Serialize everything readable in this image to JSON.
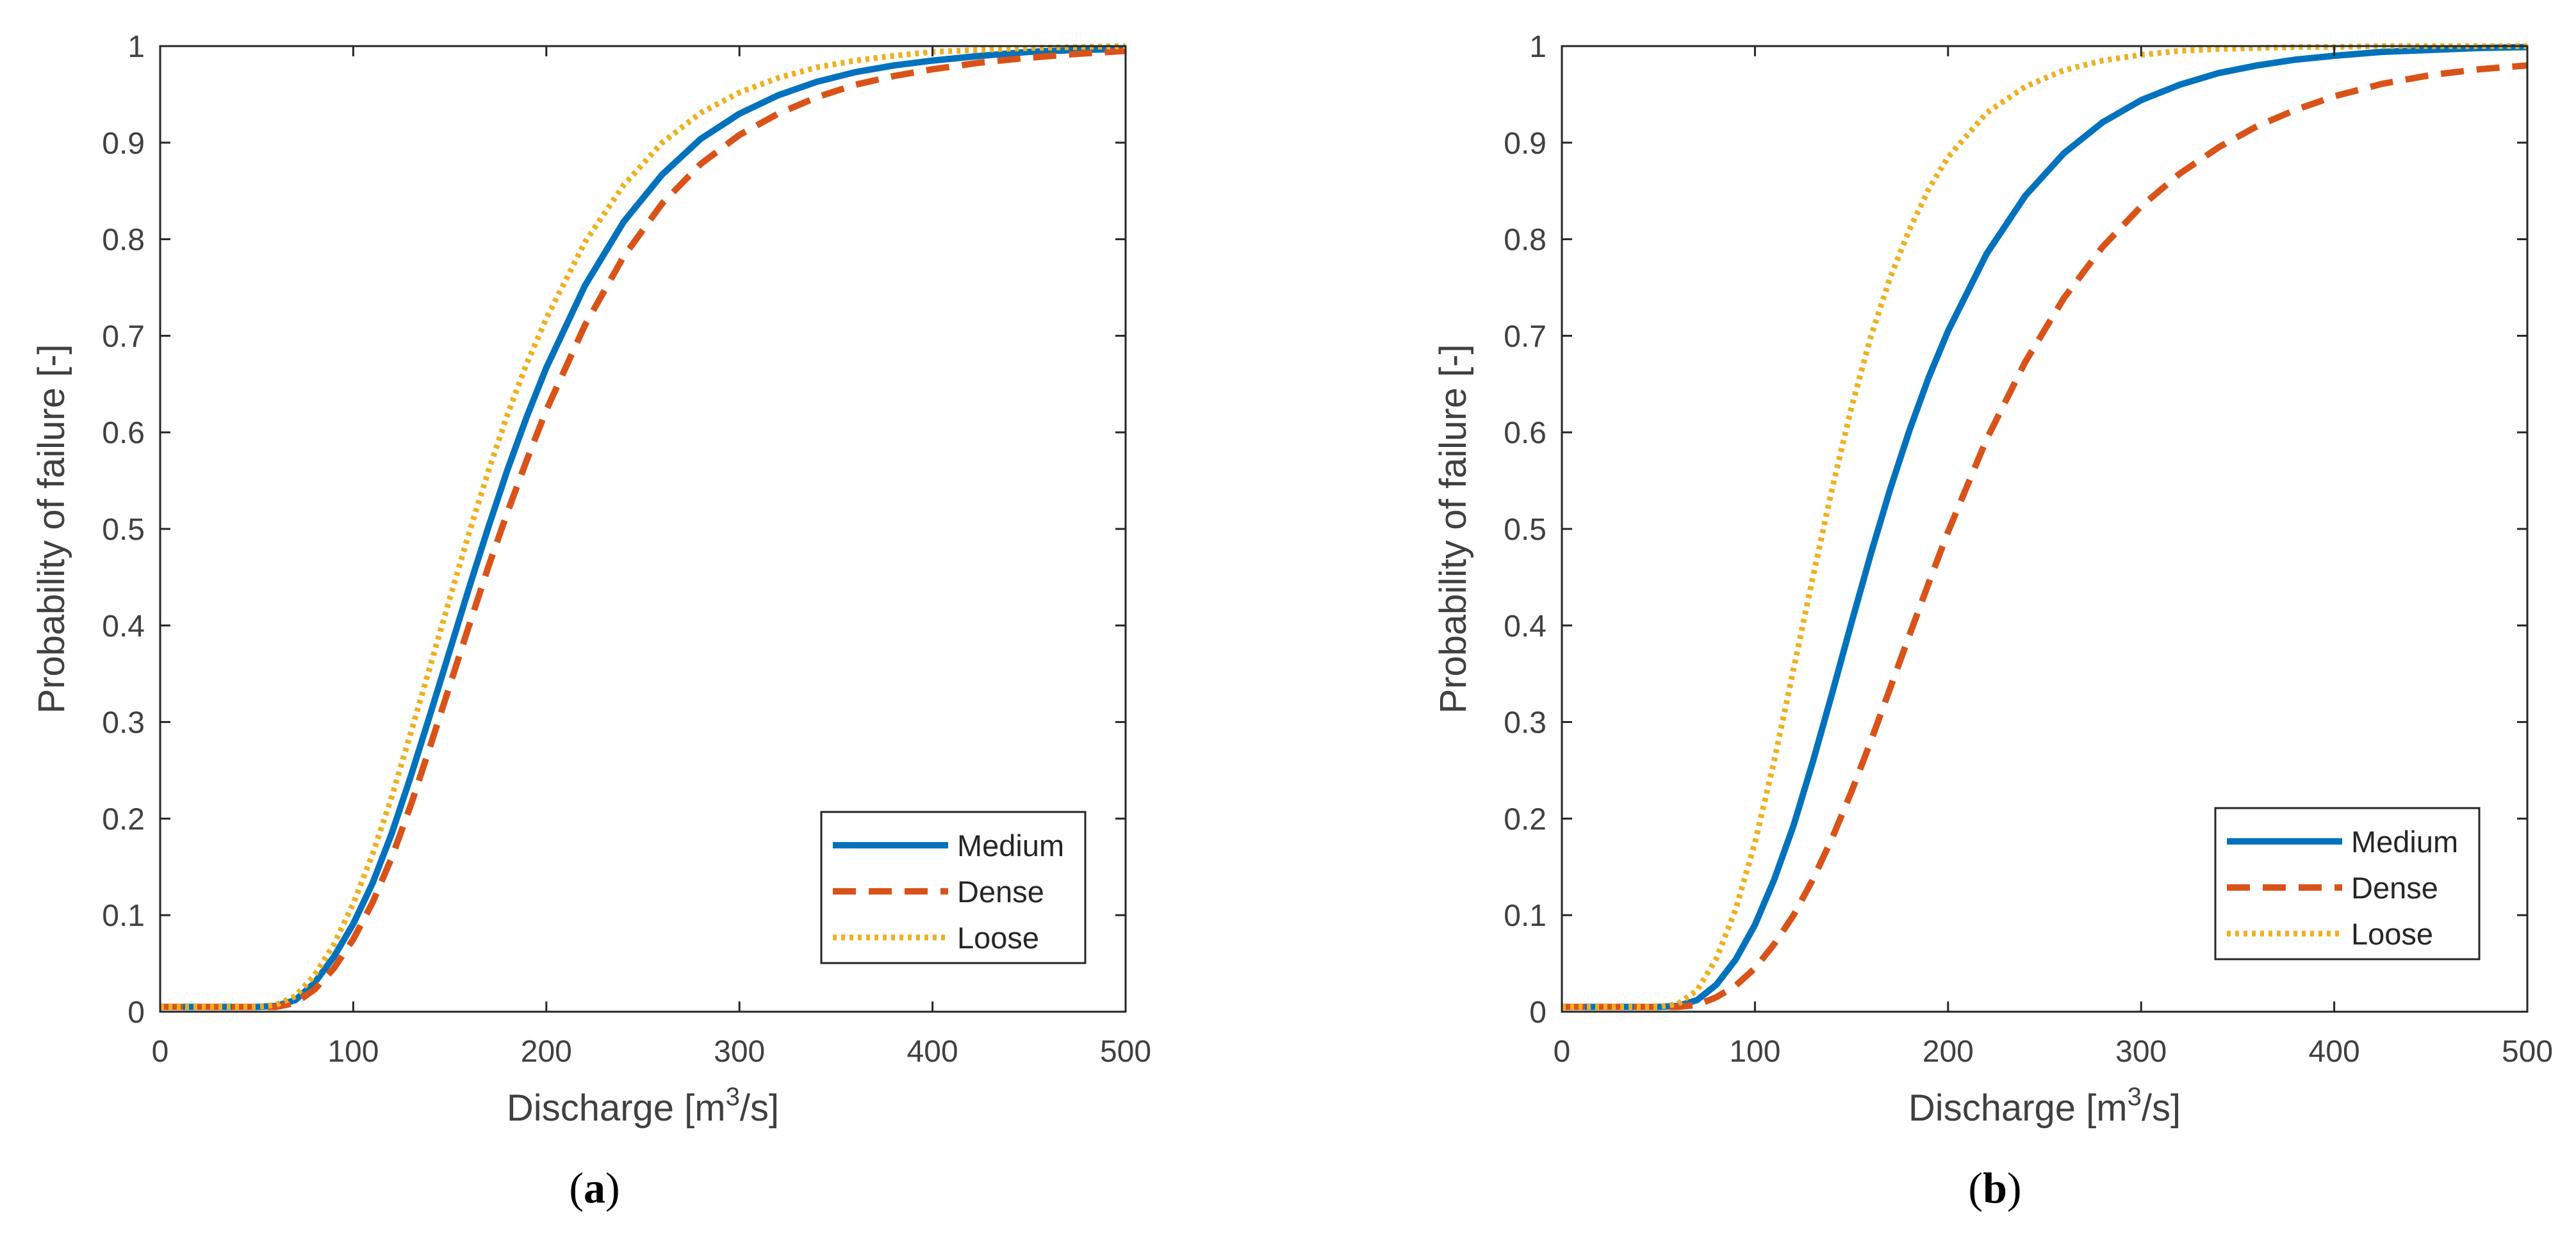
{
  "chart_data": [
    {
      "type": "line",
      "panel_label_open": "(",
      "panel_label_letter": "a",
      "panel_label_close": ")",
      "xlabel_main": "Discharge [m",
      "xlabel_sup": "3",
      "xlabel_end": "/s]",
      "ylabel": "Probability of failure [-]",
      "xlim": [
        0,
        500
      ],
      "ylim": [
        0,
        1
      ],
      "xticks": [
        0,
        100,
        200,
        300,
        400,
        500
      ],
      "xtick_labels": [
        "0",
        "100",
        "200",
        "300",
        "400",
        "500"
      ],
      "yticks": [
        0,
        0.1,
        0.2,
        0.3,
        0.4,
        0.5,
        0.6,
        0.7,
        0.8,
        0.9,
        1
      ],
      "ytick_labels": [
        "0",
        "0.1",
        "0.2",
        "0.3",
        "0.4",
        "0.5",
        "0.6",
        "0.7",
        "0.8",
        "0.9",
        "1"
      ],
      "grid": false,
      "legend_position": "bottom-right",
      "series": [
        {
          "name": "Medium",
          "color": "#0072BD",
          "style": "solid",
          "x": [
            0,
            50,
            60,
            70,
            80,
            90,
            100,
            110,
            120,
            130,
            140,
            150,
            160,
            170,
            180,
            190,
            200,
            220,
            240,
            260,
            280,
            300,
            320,
            340,
            360,
            380,
            400,
            425,
            450,
            475,
            500
          ],
          "y": [
            0.005,
            0.005,
            0.006,
            0.012,
            0.03,
            0.057,
            0.091,
            0.133,
            0.185,
            0.245,
            0.309,
            0.374,
            0.439,
            0.502,
            0.562,
            0.617,
            0.667,
            0.752,
            0.818,
            0.867,
            0.904,
            0.93,
            0.949,
            0.963,
            0.973,
            0.98,
            0.985,
            0.99,
            0.994,
            0.996,
            0.997
          ]
        },
        {
          "name": "Dense",
          "color": "#D95319",
          "style": "dashed",
          "x": [
            0,
            50,
            60,
            70,
            80,
            90,
            100,
            110,
            120,
            130,
            140,
            150,
            160,
            170,
            180,
            190,
            200,
            220,
            240,
            260,
            280,
            300,
            320,
            340,
            360,
            380,
            400,
            425,
            450,
            475,
            500
          ],
          "y": [
            0.005,
            0.005,
            0.005,
            0.009,
            0.023,
            0.045,
            0.075,
            0.113,
            0.16,
            0.215,
            0.276,
            0.338,
            0.4,
            0.461,
            0.518,
            0.572,
            0.623,
            0.711,
            0.782,
            0.837,
            0.878,
            0.908,
            0.93,
            0.947,
            0.96,
            0.969,
            0.976,
            0.983,
            0.988,
            0.992,
            0.995
          ]
        },
        {
          "name": "Loose",
          "color": "#EDB120",
          "style": "dotted",
          "x": [
            0,
            50,
            60,
            70,
            80,
            90,
            100,
            110,
            120,
            130,
            140,
            150,
            160,
            170,
            180,
            190,
            200,
            220,
            240,
            260,
            280,
            300,
            320,
            340,
            360,
            380,
            400,
            425,
            450,
            475,
            500
          ],
          "y": [
            0.005,
            0.005,
            0.007,
            0.016,
            0.038,
            0.07,
            0.112,
            0.163,
            0.223,
            0.29,
            0.359,
            0.428,
            0.496,
            0.56,
            0.619,
            0.672,
            0.718,
            0.797,
            0.856,
            0.9,
            0.931,
            0.952,
            0.967,
            0.978,
            0.985,
            0.99,
            0.994,
            0.996,
            0.998,
            0.999,
            1.0
          ]
        }
      ]
    },
    {
      "type": "line",
      "panel_label_open": "(",
      "panel_label_letter": "b",
      "panel_label_close": ")",
      "xlabel_main": "Discharge [m",
      "xlabel_sup": "3",
      "xlabel_end": "/s]",
      "ylabel": "Probability of failure [-]",
      "xlim": [
        0,
        500
      ],
      "ylim": [
        0,
        1
      ],
      "xticks": [
        0,
        100,
        200,
        300,
        400,
        500
      ],
      "xtick_labels": [
        "0",
        "100",
        "200",
        "300",
        "400",
        "500"
      ],
      "yticks": [
        0,
        0.1,
        0.2,
        0.3,
        0.4,
        0.5,
        0.6,
        0.7,
        0.8,
        0.9,
        1
      ],
      "ytick_labels": [
        "0",
        "0.1",
        "0.2",
        "0.3",
        "0.4",
        "0.5",
        "0.6",
        "0.7",
        "0.8",
        "0.9",
        "1"
      ],
      "grid": false,
      "legend_position": "bottom-right",
      "series": [
        {
          "name": "Medium",
          "color": "#0072BD",
          "style": "solid",
          "x": [
            0,
            50,
            60,
            70,
            80,
            90,
            100,
            110,
            120,
            130,
            140,
            150,
            160,
            170,
            180,
            190,
            200,
            220,
            240,
            260,
            280,
            300,
            320,
            340,
            360,
            380,
            400,
            425,
            450,
            475,
            500
          ],
          "y": [
            0.005,
            0.005,
            0.006,
            0.012,
            0.028,
            0.054,
            0.09,
            0.137,
            0.193,
            0.259,
            0.33,
            0.403,
            0.474,
            0.541,
            0.602,
            0.657,
            0.705,
            0.785,
            0.845,
            0.889,
            0.921,
            0.944,
            0.96,
            0.972,
            0.98,
            0.986,
            0.99,
            0.994,
            0.996,
            0.998,
            0.999
          ]
        },
        {
          "name": "Dense",
          "color": "#D95319",
          "style": "dashed",
          "x": [
            0,
            50,
            60,
            70,
            80,
            90,
            100,
            110,
            120,
            130,
            140,
            150,
            160,
            170,
            180,
            190,
            200,
            220,
            240,
            260,
            280,
            300,
            320,
            340,
            360,
            380,
            400,
            425,
            450,
            475,
            500
          ],
          "y": [
            0.005,
            0.005,
            0.005,
            0.007,
            0.015,
            0.027,
            0.045,
            0.07,
            0.1,
            0.137,
            0.18,
            0.228,
            0.28,
            0.335,
            0.39,
            0.444,
            0.497,
            0.593,
            0.673,
            0.739,
            0.792,
            0.834,
            0.868,
            0.895,
            0.917,
            0.934,
            0.948,
            0.961,
            0.97,
            0.976,
            0.98
          ]
        },
        {
          "name": "Loose",
          "color": "#EDB120",
          "style": "dotted",
          "x": [
            0,
            50,
            60,
            70,
            80,
            90,
            100,
            110,
            120,
            130,
            140,
            150,
            160,
            170,
            180,
            190,
            200,
            220,
            240,
            260,
            280,
            300,
            320,
            340,
            360,
            380,
            400,
            425,
            450,
            475,
            500
          ],
          "y": [
            0.005,
            0.005,
            0.008,
            0.022,
            0.055,
            0.106,
            0.175,
            0.26,
            0.355,
            0.45,
            0.542,
            0.626,
            0.699,
            0.76,
            0.81,
            0.852,
            0.885,
            0.931,
            0.958,
            0.975,
            0.985,
            0.991,
            0.995,
            0.997,
            0.998,
            0.999,
            0.999,
            1.0,
            1.0,
            1.0,
            1.0
          ]
        }
      ]
    }
  ]
}
